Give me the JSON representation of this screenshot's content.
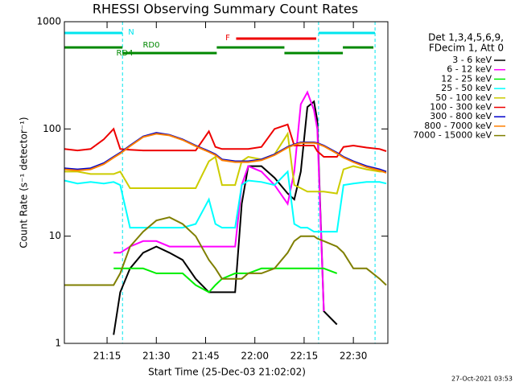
{
  "chart_data": {
    "type": "line",
    "title": "RHESSI Observing Summary Count Rates",
    "xlabel": "Start Time (25-Dec-03 21:02:02)",
    "ylabel": "Count Rate (s⁻¹ detector⁻¹)",
    "legend_title": [
      "Det 1,3,4,5,6,9,",
      "FDecim 1, Att 0"
    ],
    "footer": "27-Oct-2021 03:53",
    "log_scale": true,
    "xlim": [
      2,
      100.5
    ],
    "ylim": [
      1,
      1000
    ],
    "yticks": [
      1,
      10,
      100,
      1000
    ],
    "xticks": [
      {
        "value": 15,
        "label": "21:15"
      },
      {
        "value": 30,
        "label": "21:30"
      },
      {
        "value": 45,
        "label": "21:45"
      },
      {
        "value": 60,
        "label": "22:00"
      },
      {
        "value": 75,
        "label": "22:15"
      },
      {
        "value": 90,
        "label": "22:30"
      }
    ],
    "flags": [
      {
        "label": "N",
        "color": "#00e5ee",
        "segments": [
          [
            2,
            19.7
          ],
          [
            79.4,
            96.6
          ]
        ]
      },
      {
        "label": "F",
        "color": "#ee0000",
        "segments": [
          [
            54.3,
            78.7
          ]
        ]
      },
      {
        "label": "RD0",
        "color": "#008800",
        "segments": [
          [
            2,
            19.7
          ],
          [
            48.4,
            69
          ],
          [
            86.8,
            96.1
          ]
        ]
      },
      {
        "label": "RD4",
        "color": "#008800",
        "segments": [
          [
            19.7,
            48.4
          ],
          [
            69,
            86.8
          ]
        ]
      }
    ],
    "x": [
      2,
      6,
      10,
      14,
      17,
      19,
      22,
      26,
      30,
      34,
      38,
      42,
      46,
      48,
      50,
      54,
      56,
      58,
      62,
      66,
      70,
      72,
      74,
      76,
      78,
      79,
      81,
      85,
      87,
      90,
      94,
      98,
      100
    ],
    "series": [
      {
        "name": "3 - 6 keV",
        "color": "#000000",
        "values": [
          null,
          null,
          null,
          null,
          1.2,
          3,
          5,
          7,
          8,
          7,
          6,
          4,
          3,
          3,
          3,
          3,
          20,
          45,
          45,
          35,
          25,
          22,
          40,
          160,
          180,
          120,
          2,
          1.5,
          null,
          null,
          null,
          null,
          null
        ]
      },
      {
        "name": "6 - 12 keV",
        "color": "#ff00ff",
        "values": [
          null,
          null,
          null,
          null,
          7,
          7,
          8,
          9,
          9,
          8,
          8,
          8,
          8,
          8,
          8,
          8,
          30,
          45,
          40,
          30,
          20,
          40,
          170,
          220,
          150,
          100,
          2,
          null,
          null,
          null,
          null,
          null,
          null
        ]
      },
      {
        "name": "12 - 25 keV",
        "color": "#00ee00",
        "values": [
          null,
          null,
          null,
          null,
          5,
          5,
          5,
          5,
          4.5,
          4.5,
          4.5,
          3.5,
          3,
          3.5,
          4,
          4.5,
          4.5,
          4.5,
          5,
          5,
          5,
          5,
          5,
          5,
          5,
          5,
          5,
          4.5,
          null,
          null,
          null,
          null,
          null
        ]
      },
      {
        "name": "25 - 50 keV",
        "color": "#00ffff",
        "values": [
          33,
          31,
          32,
          31,
          32,
          30,
          12,
          12,
          12,
          12,
          12,
          13,
          22,
          13,
          12,
          12,
          30,
          33,
          32,
          30,
          40,
          13,
          12,
          12,
          11,
          11,
          11,
          11,
          30,
          31,
          32,
          32,
          31
        ]
      },
      {
        "name": "50 - 100 keV",
        "color": "#cccc00",
        "values": [
          40,
          40,
          38,
          38,
          38,
          40,
          28,
          28,
          28,
          28,
          28,
          28,
          50,
          55,
          30,
          30,
          50,
          55,
          52,
          58,
          90,
          30,
          28,
          26,
          26,
          26,
          26,
          25,
          42,
          45,
          42,
          40,
          40
        ]
      },
      {
        "name": "100 - 300 keV",
        "color": "#ee0000",
        "values": [
          65,
          63,
          65,
          80,
          100,
          65,
          64,
          63,
          63,
          63,
          63,
          63,
          95,
          68,
          65,
          65,
          65,
          65,
          68,
          100,
          110,
          70,
          70,
          70,
          70,
          62,
          55,
          55,
          68,
          70,
          67,
          65,
          62
        ]
      },
      {
        "name": "300 - 800 keV",
        "color": "#0000cc",
        "values": [
          43,
          42,
          43,
          48,
          55,
          60,
          70,
          85,
          92,
          88,
          80,
          70,
          62,
          58,
          52,
          50,
          50,
          50,
          52,
          58,
          68,
          72,
          75,
          75,
          75,
          74,
          70,
          60,
          55,
          50,
          45,
          42,
          40
        ]
      },
      {
        "name": "800 - 7000 keV",
        "color": "#ff7f00",
        "values": [
          42,
          41,
          42,
          47,
          54,
          59,
          69,
          84,
          90,
          87,
          79,
          69,
          61,
          57,
          51,
          49,
          49,
          49,
          51,
          57,
          67,
          71,
          74,
          74,
          74,
          73,
          69,
          59,
          54,
          49,
          44,
          41,
          39
        ]
      },
      {
        "name": "7000 - 15000 keV",
        "color": "#7f7f00",
        "values": [
          3.5,
          3.5,
          3.5,
          3.5,
          3.5,
          4.5,
          8,
          11,
          14,
          15,
          13,
          10,
          6,
          5,
          4,
          4,
          4,
          4.5,
          4.5,
          5,
          7,
          9,
          10,
          10,
          10,
          9.5,
          9,
          8,
          7,
          5,
          5,
          4,
          3.5
        ]
      }
    ]
  }
}
